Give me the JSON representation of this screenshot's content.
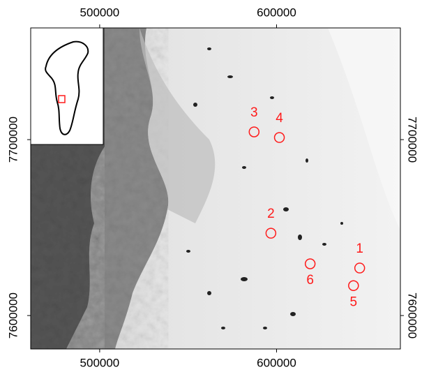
{
  "map": {
    "xlim": [
      461000,
      670000
    ],
    "ylim": [
      7581000,
      7763500
    ],
    "xticks": [
      500000,
      600000
    ],
    "yticks": [
      7600000,
      7700000
    ],
    "marker_color": "#ff1a1a",
    "markers": [
      {
        "label": "1",
        "x": 647000,
        "y": 7627000,
        "label_side": "above"
      },
      {
        "label": "2",
        "x": 596800,
        "y": 7646800,
        "label_side": "above"
      },
      {
        "label": "3",
        "x": 587300,
        "y": 7704400,
        "label_side": "above"
      },
      {
        "label": "4",
        "x": 601600,
        "y": 7701200,
        "label_side": "above"
      },
      {
        "label": "5",
        "x": 643500,
        "y": 7617000,
        "label_side": "below"
      },
      {
        "label": "6",
        "x": 619000,
        "y": 7629400,
        "label_side": "below"
      }
    ]
  }
}
